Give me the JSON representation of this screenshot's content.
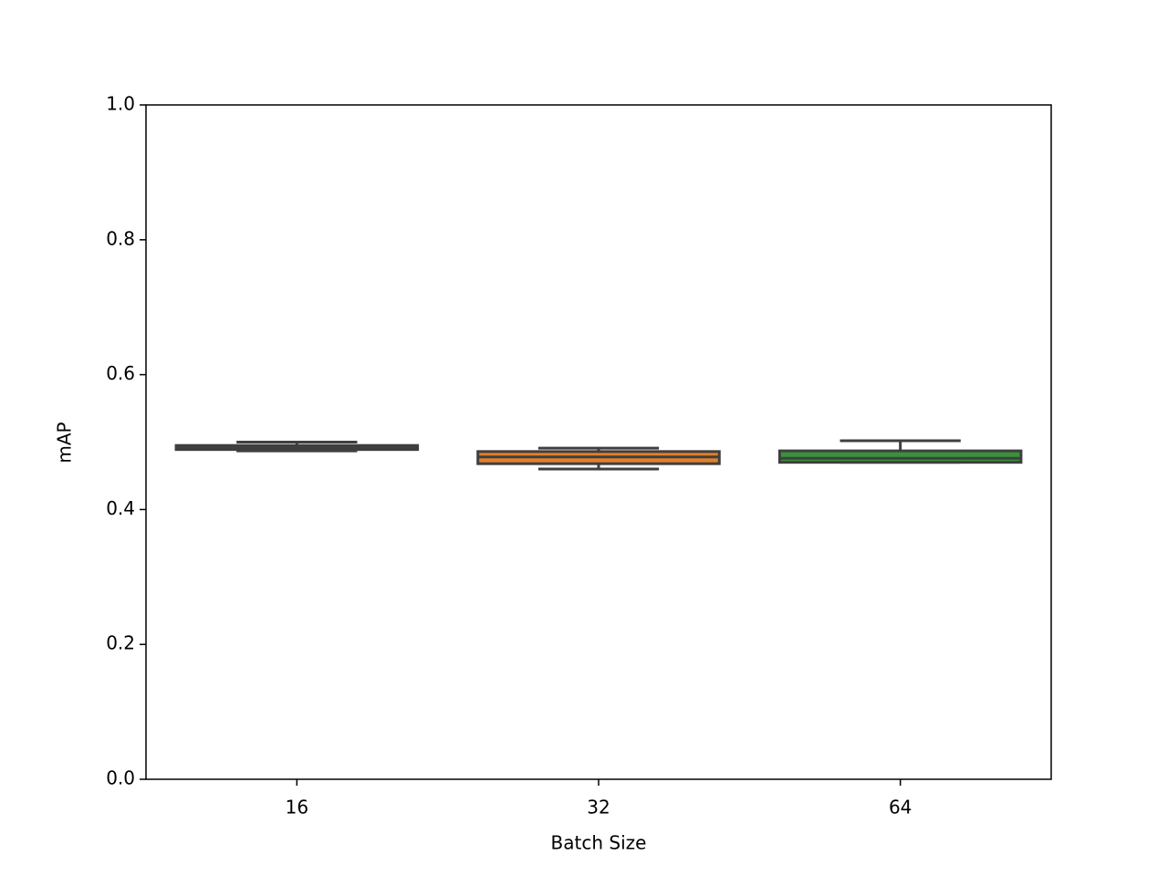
{
  "chart_data": {
    "type": "box",
    "xlabel": "Batch Size",
    "ylabel": "mAP",
    "categories": [
      "16",
      "32",
      "64"
    ],
    "colors": [
      "#3274a1",
      "#e1812c",
      "#3a923a"
    ],
    "edge_color": "#3f3f3f",
    "min": [
      0.487,
      0.46,
      0.47
    ],
    "q1": [
      0.489,
      0.468,
      0.47
    ],
    "median": [
      0.492,
      0.478,
      0.476
    ],
    "q3": [
      0.495,
      0.486,
      0.487
    ],
    "max": [
      0.5,
      0.491,
      0.502
    ],
    "ylim": [
      0,
      1
    ],
    "yticks": [
      {
        "value": 0,
        "label": "0.0"
      },
      0.2,
      0.4,
      0.6,
      0.8,
      {
        "value": 1,
        "label": "1.0"
      }
    ]
  }
}
